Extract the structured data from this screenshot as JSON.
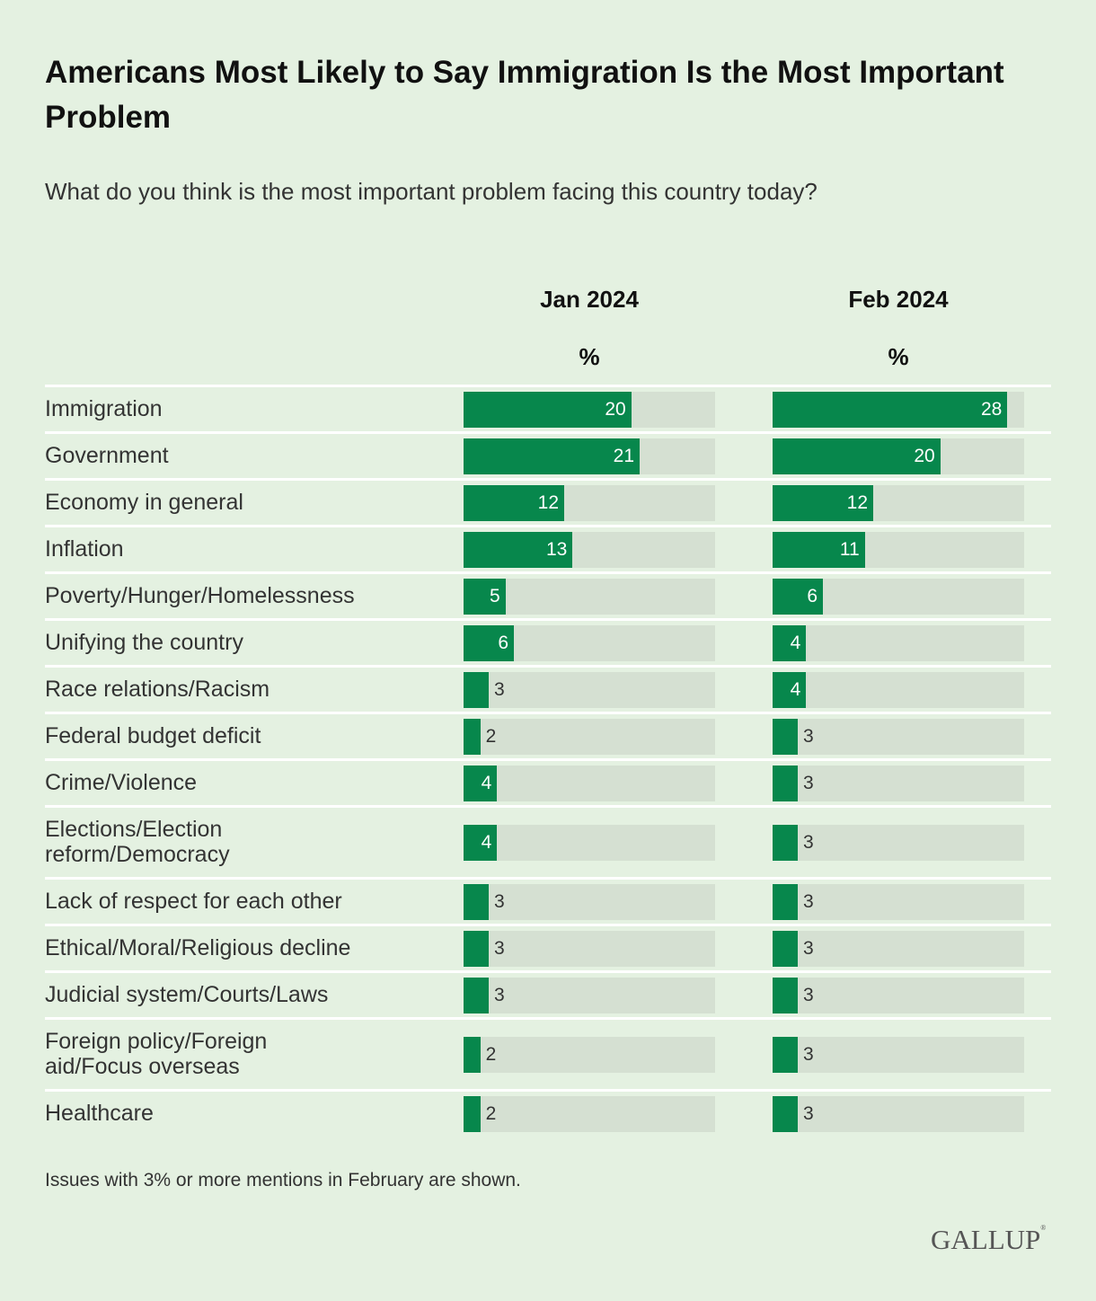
{
  "chart_data": {
    "type": "bar",
    "orientation": "horizontal",
    "title": "Americans Most Likely to Say Immigration Is the Most Important Problem",
    "subtitle": "What do you think is the most important problem facing this country today?",
    "unit_label": "%",
    "xlim": [
      0,
      30
    ],
    "categories": [
      "Immigration",
      "Government",
      "Economy in general",
      "Inflation",
      "Poverty/Hunger/Homelessness",
      "Unifying the country",
      "Race relations/Racism",
      "Federal budget deficit",
      "Crime/Violence",
      "Elections/Election reform/Democracy",
      "Lack of respect for each other",
      "Ethical/Moral/Religious decline",
      "Judicial system/Courts/Laws",
      "Foreign policy/Foreign aid/Focus overseas",
      "Healthcare"
    ],
    "series": [
      {
        "name": "Jan 2024",
        "values": [
          20,
          21,
          12,
          13,
          5,
          6,
          3,
          2,
          4,
          4,
          3,
          3,
          3,
          2,
          2
        ]
      },
      {
        "name": "Feb 2024",
        "values": [
          28,
          20,
          12,
          11,
          6,
          4,
          4,
          3,
          3,
          3,
          3,
          3,
          3,
          3,
          3
        ]
      }
    ],
    "note": "Issues with 3% or more mentions in February are shown.",
    "colors": {
      "bar": "#07874c",
      "track": "#d5e0d2",
      "background": "#e4f1e1"
    }
  },
  "branding": {
    "logo": "GALLUP"
  }
}
